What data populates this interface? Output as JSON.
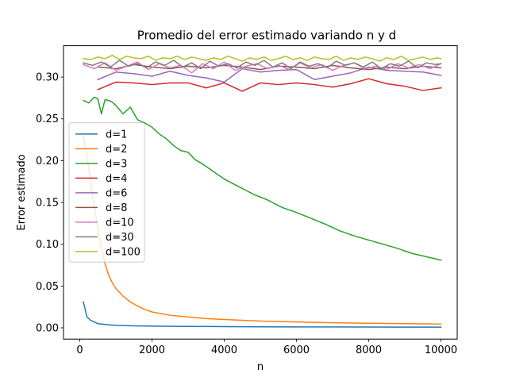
{
  "chart_data": {
    "type": "line",
    "title": "Promedio del error estimado variando n y d",
    "xlabel": "n",
    "ylabel": "Error estimado",
    "xlim": [
      -450,
      10450
    ],
    "ylim": [
      -0.0135,
      0.3375
    ],
    "xticks": [
      0,
      2000,
      4000,
      6000,
      8000,
      10000
    ],
    "yticks": [
      0.0,
      0.05,
      0.1,
      0.15,
      0.2,
      0.25,
      0.3
    ],
    "xtick_labels": [
      "0",
      "2000",
      "4000",
      "6000",
      "8000",
      "10000"
    ],
    "ytick_labels": [
      "0.00",
      "0.05",
      "0.10",
      "0.15",
      "0.20",
      "0.25",
      "0.30"
    ],
    "grid": false,
    "legend_position": "center-left",
    "series": [
      {
        "name": "d=1",
        "color": "#1f77b4",
        "x": [
          100,
          200,
          300,
          400,
          500,
          600,
          700,
          800,
          1000,
          1200,
          1500,
          2000,
          3000,
          4000,
          5000,
          6000,
          7000,
          8000,
          9000,
          10000
        ],
        "y": [
          0.031,
          0.013,
          0.009,
          0.007,
          0.005,
          0.0045,
          0.004,
          0.0035,
          0.003,
          0.0027,
          0.0024,
          0.002,
          0.0017,
          0.0014,
          0.0012,
          0.0011,
          0.001,
          0.0009,
          0.0008,
          0.0008
        ]
      },
      {
        "name": "d=2",
        "color": "#ff7f0e",
        "x": [
          100,
          200,
          300,
          400,
          500,
          600,
          700,
          800,
          900,
          1000,
          1200,
          1400,
          1600,
          1800,
          2000,
          2500,
          3000,
          3500,
          4000,
          4500,
          5000,
          6000,
          7000,
          8000,
          9000,
          10000
        ],
        "y": [
          0.23,
          0.205,
          0.175,
          0.145,
          0.12,
          0.095,
          0.077,
          0.063,
          0.054,
          0.047,
          0.038,
          0.031,
          0.026,
          0.022,
          0.019,
          0.015,
          0.013,
          0.011,
          0.01,
          0.009,
          0.008,
          0.007,
          0.006,
          0.0055,
          0.005,
          0.0045
        ]
      },
      {
        "name": "d=3",
        "color": "#2ca02c",
        "x": [
          100,
          250,
          400,
          500,
          600,
          700,
          800,
          900,
          1000,
          1200,
          1400,
          1600,
          1800,
          2000,
          2200,
          2400,
          2600,
          2800,
          3000,
          3200,
          3400,
          3600,
          3800,
          4000,
          4400,
          4800,
          5200,
          5600,
          6000,
          6400,
          6800,
          7200,
          7600,
          8000,
          8400,
          8800,
          9200,
          9600,
          10000
        ],
        "y": [
          0.272,
          0.269,
          0.276,
          0.274,
          0.256,
          0.273,
          0.272,
          0.27,
          0.266,
          0.256,
          0.264,
          0.249,
          0.245,
          0.24,
          0.232,
          0.226,
          0.218,
          0.212,
          0.21,
          0.201,
          0.196,
          0.19,
          0.184,
          0.178,
          0.169,
          0.16,
          0.153,
          0.144,
          0.138,
          0.131,
          0.124,
          0.116,
          0.11,
          0.105,
          0.1,
          0.095,
          0.089,
          0.085,
          0.081
        ]
      },
      {
        "name": "d=4",
        "color": "#d62728",
        "x": [
          500,
          1000,
          1500,
          2000,
          2500,
          3000,
          3500,
          4000,
          4500,
          5000,
          5500,
          6000,
          6500,
          7000,
          7500,
          8000,
          8500,
          9000,
          9500,
          10000
        ],
        "y": [
          0.285,
          0.294,
          0.293,
          0.291,
          0.293,
          0.293,
          0.287,
          0.293,
          0.283,
          0.293,
          0.291,
          0.293,
          0.291,
          0.288,
          0.292,
          0.298,
          0.292,
          0.289,
          0.284,
          0.287
        ]
      },
      {
        "name": "d=6",
        "color": "#9467bd",
        "x": [
          500,
          1000,
          1500,
          2000,
          2500,
          3000,
          3500,
          4000,
          4500,
          5000,
          5500,
          6000,
          6500,
          7000,
          7500,
          8000,
          8500,
          9000,
          9500,
          10000
        ],
        "y": [
          0.297,
          0.306,
          0.304,
          0.301,
          0.307,
          0.302,
          0.299,
          0.294,
          0.31,
          0.306,
          0.308,
          0.309,
          0.297,
          0.301,
          0.305,
          0.312,
          0.308,
          0.307,
          0.306,
          0.302
        ]
      },
      {
        "name": "d=8",
        "color": "#8c564b",
        "x": [
          500,
          1000,
          1500,
          2000,
          2500,
          3000,
          3500,
          4000,
          4500,
          5000,
          5500,
          6000,
          6500,
          7000,
          7500,
          8000,
          8500,
          9000,
          9500,
          10000
        ],
        "y": [
          0.312,
          0.31,
          0.315,
          0.312,
          0.31,
          0.313,
          0.311,
          0.314,
          0.312,
          0.309,
          0.313,
          0.312,
          0.31,
          0.314,
          0.311,
          0.309,
          0.312,
          0.31,
          0.313,
          0.311
        ]
      },
      {
        "name": "d=10",
        "color": "#e377c2",
        "x": [
          100,
          400,
          700,
          1000,
          1300,
          1600,
          1900,
          2200,
          2500,
          2800,
          3100,
          3400,
          3700,
          4000,
          4300,
          4600,
          4900,
          5200,
          5500,
          5800,
          6100,
          6400,
          6700,
          7000,
          7300,
          7600,
          7900,
          8200,
          8500,
          8800,
          9100,
          9400,
          9700,
          10000
        ],
        "y": [
          0.315,
          0.31,
          0.317,
          0.308,
          0.313,
          0.318,
          0.309,
          0.316,
          0.311,
          0.314,
          0.305,
          0.316,
          0.31,
          0.318,
          0.308,
          0.313,
          0.316,
          0.31,
          0.314,
          0.309,
          0.317,
          0.311,
          0.315,
          0.308,
          0.314,
          0.317,
          0.31,
          0.313,
          0.309,
          0.316,
          0.311,
          0.315,
          0.31,
          0.316
        ]
      },
      {
        "name": "d=30",
        "color": "#7f7f7f",
        "x": [
          100,
          350,
          600,
          850,
          1100,
          1350,
          1600,
          1850,
          2100,
          2350,
          2600,
          2850,
          3100,
          3350,
          3600,
          3850,
          4100,
          4350,
          4600,
          4850,
          5100,
          5350,
          5600,
          5850,
          6100,
          6350,
          6600,
          6850,
          7100,
          7350,
          7600,
          7850,
          8100,
          8350,
          8600,
          8850,
          9100,
          9350,
          9600,
          9850,
          10000
        ],
        "y": [
          0.317,
          0.314,
          0.318,
          0.312,
          0.32,
          0.313,
          0.316,
          0.311,
          0.318,
          0.314,
          0.32,
          0.312,
          0.317,
          0.31,
          0.319,
          0.313,
          0.316,
          0.311,
          0.318,
          0.314,
          0.32,
          0.312,
          0.317,
          0.31,
          0.318,
          0.313,
          0.316,
          0.311,
          0.319,
          0.314,
          0.317,
          0.312,
          0.318,
          0.31,
          0.316,
          0.313,
          0.319,
          0.311,
          0.317,
          0.315,
          0.316
        ]
      },
      {
        "name": "d=100",
        "color": "#bcbd22",
        "x": [
          100,
          300,
          500,
          700,
          900,
          1100,
          1300,
          1500,
          1700,
          1900,
          2100,
          2300,
          2500,
          2700,
          2900,
          3100,
          3300,
          3500,
          3700,
          3900,
          4100,
          4300,
          4500,
          4700,
          4900,
          5100,
          5300,
          5500,
          5700,
          5900,
          6100,
          6300,
          6500,
          6700,
          6900,
          7100,
          7300,
          7500,
          7700,
          7900,
          8100,
          8300,
          8500,
          8700,
          8900,
          9100,
          9300,
          9500,
          9700,
          9900,
          10000
        ],
        "y": [
          0.322,
          0.321,
          0.324,
          0.322,
          0.326,
          0.321,
          0.325,
          0.323,
          0.322,
          0.325,
          0.32,
          0.323,
          0.322,
          0.325,
          0.321,
          0.324,
          0.322,
          0.32,
          0.323,
          0.321,
          0.325,
          0.322,
          0.319,
          0.323,
          0.321,
          0.324,
          0.32,
          0.322,
          0.325,
          0.321,
          0.323,
          0.32,
          0.324,
          0.322,
          0.321,
          0.325,
          0.32,
          0.323,
          0.321,
          0.324,
          0.322,
          0.319,
          0.323,
          0.321,
          0.325,
          0.32,
          0.322,
          0.324,
          0.321,
          0.323,
          0.322
        ]
      }
    ]
  }
}
